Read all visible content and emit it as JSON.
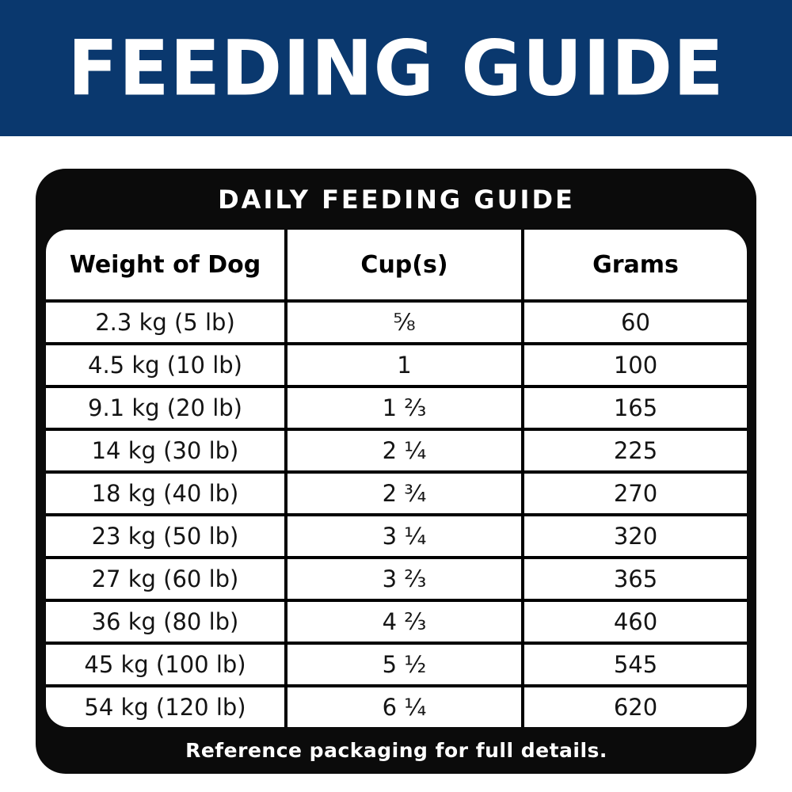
{
  "banner": {
    "title": "FEEDING GUIDE"
  },
  "card": {
    "title": "DAILY FEEDING GUIDE",
    "footer": "Reference packaging for full details."
  },
  "table": {
    "headers": [
      "Weight of Dog",
      "Cup(s)",
      "Grams"
    ],
    "rows": [
      {
        "weight": "2.3 kg (5 lb)",
        "cups": "⅝",
        "grams": "60"
      },
      {
        "weight": "4.5 kg (10 lb)",
        "cups": "1",
        "grams": "100"
      },
      {
        "weight": "9.1 kg (20 lb)",
        "cups": "1 ⅔",
        "grams": "165"
      },
      {
        "weight": "14 kg (30 lb)",
        "cups": "2 ¼",
        "grams": "225"
      },
      {
        "weight": "18 kg (40 lb)",
        "cups": "2 ¾",
        "grams": "270"
      },
      {
        "weight": "23 kg (50 lb)",
        "cups": "3 ¼",
        "grams": "320"
      },
      {
        "weight": "27 kg (60 lb)",
        "cups": "3 ⅔",
        "grams": "365"
      },
      {
        "weight": "36 kg (80 lb)",
        "cups": "4 ⅔",
        "grams": "460"
      },
      {
        "weight": "45 kg (100 lb)",
        "cups": "5 ½",
        "grams": "545"
      },
      {
        "weight": "54 kg (120 lb)",
        "cups": "6 ¼",
        "grams": "620"
      }
    ]
  },
  "colors": {
    "banner_blue": "#0a386e",
    "card_black": "#0b0b0b",
    "text_white": "#ffffff",
    "text_black": "#141414"
  },
  "chart_data": {
    "type": "table",
    "title": "DAILY FEEDING GUIDE",
    "columns": [
      "Weight of Dog",
      "Cup(s)",
      "Grams"
    ],
    "rows": [
      [
        "2.3 kg (5 lb)",
        "5/8",
        60
      ],
      [
        "4.5 kg (10 lb)",
        "1",
        100
      ],
      [
        "9.1 kg (20 lb)",
        "1 2/3",
        165
      ],
      [
        "14 kg (30 lb)",
        "2 1/4",
        225
      ],
      [
        "18 kg (40 lb)",
        "2 3/4",
        270
      ],
      [
        "23 kg (50 lb)",
        "3 1/4",
        320
      ],
      [
        "27 kg (60 lb)",
        "3 2/3",
        365
      ],
      [
        "36 kg (80 lb)",
        "4 2/3",
        460
      ],
      [
        "45 kg (100 lb)",
        "5 1/2",
        545
      ],
      [
        "54 kg (120 lb)",
        "6 1/4",
        620
      ]
    ],
    "footnote": "Reference packaging for full details."
  }
}
